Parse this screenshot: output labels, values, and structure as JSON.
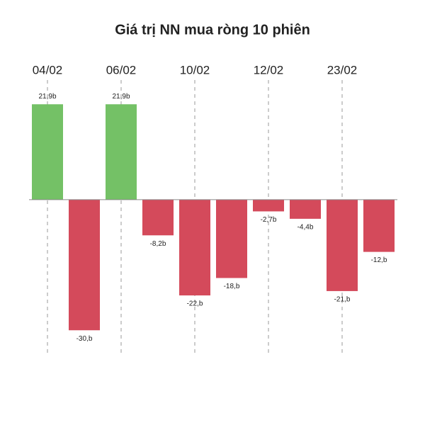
{
  "chart_data": {
    "type": "bar",
    "title": "Giá trị NN mua ròng 10 phiên",
    "categories": [
      "04/02",
      null,
      "06/02",
      null,
      "10/02",
      null,
      "12/02",
      null,
      "23/02",
      null
    ],
    "values": [
      21.9,
      -30,
      21.9,
      -8.2,
      -22,
      -18,
      -2.7,
      -4.4,
      -21,
      -12
    ],
    "value_labels": [
      "21,9b",
      "-30,b",
      "21,9b",
      "-8,2b",
      "-22,b",
      "-18,b",
      "-2,7b",
      "-4,4b",
      "-21,b",
      "-12,b"
    ],
    "colors": {
      "positive": "#74c166",
      "negative": "#d44a5b"
    },
    "ylim": [
      -35,
      26
    ],
    "grid": true
  }
}
